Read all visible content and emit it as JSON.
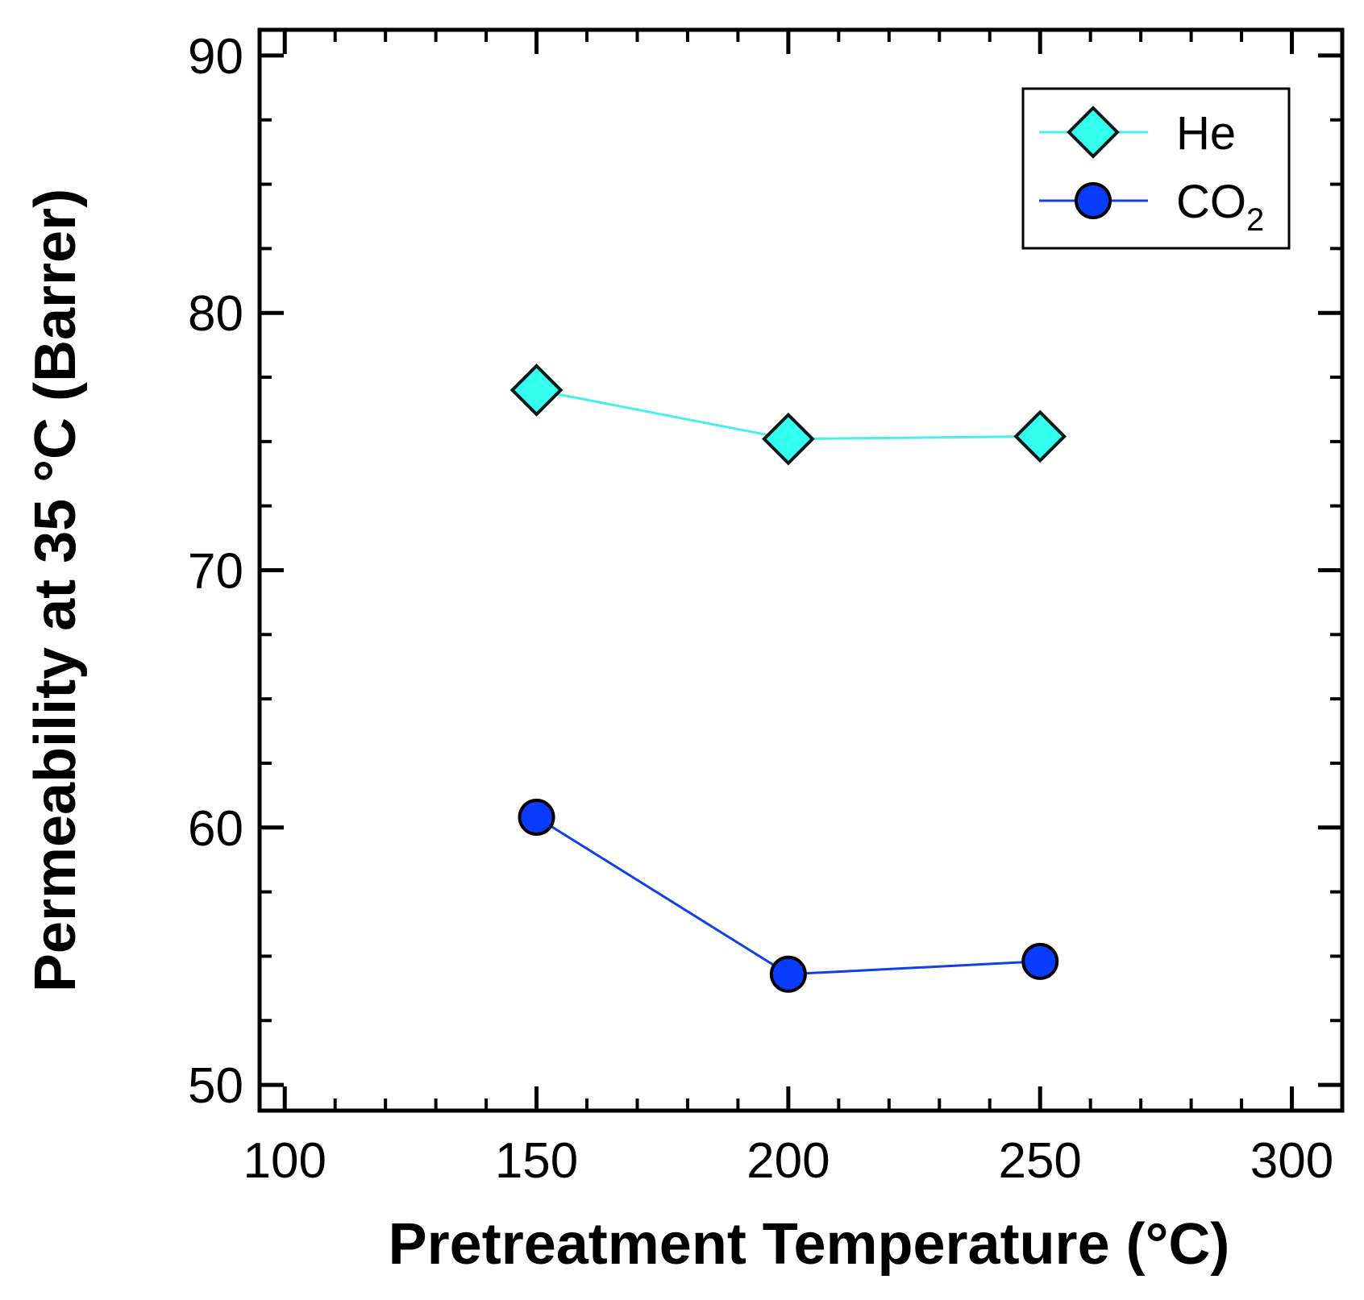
{
  "chart_data": {
    "type": "line",
    "title": "",
    "xlabel": "Pretreatment Temperature (°C)",
    "ylabel": "Permeability at 35 °C (Barrer)",
    "xlim": [
      95,
      310
    ],
    "ylim": [
      49,
      91
    ],
    "xticks": [
      100,
      150,
      200,
      250,
      300
    ],
    "xtick_labels": [
      "100",
      "150",
      "200",
      "250",
      "300"
    ],
    "yticks": [
      50,
      60,
      70,
      80,
      90
    ],
    "ytick_labels": [
      "50",
      "60",
      "70",
      "80",
      "90"
    ],
    "x_minor_step": 10,
    "y_minor_step": 2.5,
    "grid": false,
    "legend_position": "top-right",
    "x": [
      150,
      200,
      250
    ],
    "series": [
      {
        "name": "He",
        "legend_label": "He",
        "values": [
          77.0,
          75.1,
          75.2
        ],
        "marker": "diamond",
        "line_color": "#44f0f0",
        "marker_color": "#33ffee"
      },
      {
        "name": "CO2",
        "legend_label": "CO",
        "legend_subscript": "2",
        "values": [
          60.4,
          54.3,
          54.8
        ],
        "marker": "circle",
        "line_color": "#1040e8",
        "marker_color": "#0a3cff"
      }
    ]
  }
}
